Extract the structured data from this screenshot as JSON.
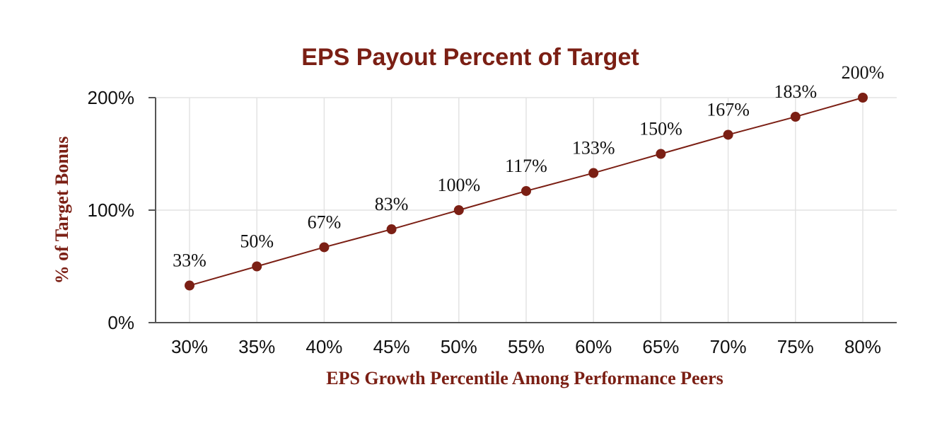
{
  "chart_data": {
    "type": "line",
    "title": "EPS Payout Percent of Target",
    "xlabel": "EPS Growth Percentile Among Performance Peers",
    "ylabel": "% of Target Bonus",
    "categories": [
      "30%",
      "35%",
      "40%",
      "45%",
      "50%",
      "55%",
      "60%",
      "65%",
      "70%",
      "75%",
      "80%"
    ],
    "values": [
      33,
      50,
      67,
      83,
      100,
      117,
      133,
      150,
      167,
      183,
      200
    ],
    "data_labels": [
      "33%",
      "50%",
      "67%",
      "83%",
      "100%",
      "117%",
      "133%",
      "150%",
      "167%",
      "183%",
      "200%"
    ],
    "ylim": [
      0,
      200
    ],
    "y_ticks": [
      {
        "value": 0,
        "label": "0%"
      },
      {
        "value": 100,
        "label": "100%"
      },
      {
        "value": 200,
        "label": "200%"
      }
    ],
    "grid": true,
    "legend": "none",
    "colors": {
      "series": "#7b1f14",
      "title": "#7b1f14",
      "grid": "#e3e3e3"
    }
  }
}
